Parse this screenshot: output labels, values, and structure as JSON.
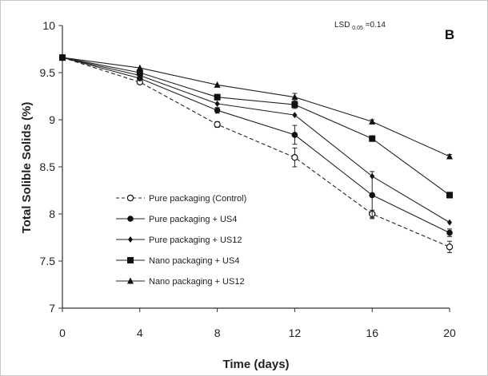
{
  "chart_data": {
    "type": "line",
    "panel_label": "B",
    "annotation": {
      "lsd_main": "LSD",
      "lsd_sub": "0.05",
      "lsd_value": "=0.14"
    },
    "xlabel": "Time  (days)",
    "ylabel": "Total Solible Solids (%)",
    "x": [
      0,
      4,
      8,
      12,
      16,
      20
    ],
    "x_ticks": [
      "0",
      "4",
      "8",
      "12",
      "16",
      "20"
    ],
    "xlim": [
      0,
      20
    ],
    "ylim": [
      7,
      10
    ],
    "y_ticks": [
      "7",
      "7.5",
      "8",
      "8.5",
      "9",
      "9.5",
      "10"
    ],
    "grid": false,
    "legend_position": "lower-left",
    "series": [
      {
        "name": "Pure packaging (Control)",
        "marker": "open-circle",
        "line_style": "dashed",
        "values": [
          9.66,
          9.4,
          8.95,
          8.6,
          8.0,
          7.65
        ],
        "errors": [
          0,
          0,
          0.03,
          0.1,
          0.04,
          0.06
        ]
      },
      {
        "name": "Pure packaging + US4",
        "marker": "circle",
        "line_style": "solid",
        "values": [
          9.66,
          9.44,
          9.1,
          8.84,
          8.2,
          7.8
        ],
        "errors": [
          0,
          0,
          0.03,
          0.1,
          0.25,
          0.04
        ]
      },
      {
        "name": "Pure packaging + US12",
        "marker": "diamond",
        "line_style": "solid",
        "values": [
          9.66,
          9.47,
          9.17,
          9.05,
          8.4,
          7.91
        ],
        "errors": [
          0,
          0,
          0,
          0,
          0,
          0
        ]
      },
      {
        "name": "Nano packaging + US4",
        "marker": "square",
        "line_style": "solid",
        "values": [
          9.66,
          9.5,
          9.24,
          9.16,
          8.8,
          8.2
        ],
        "errors": [
          0,
          0,
          0.03,
          0.04,
          0.03,
          0.03
        ]
      },
      {
        "name": "Nano packaging + US12",
        "marker": "triangle",
        "line_style": "solid",
        "values": [
          9.66,
          9.55,
          9.37,
          9.24,
          8.98,
          8.61
        ],
        "errors": [
          0,
          0,
          0,
          0.04,
          0.02,
          0.02
        ]
      }
    ]
  }
}
